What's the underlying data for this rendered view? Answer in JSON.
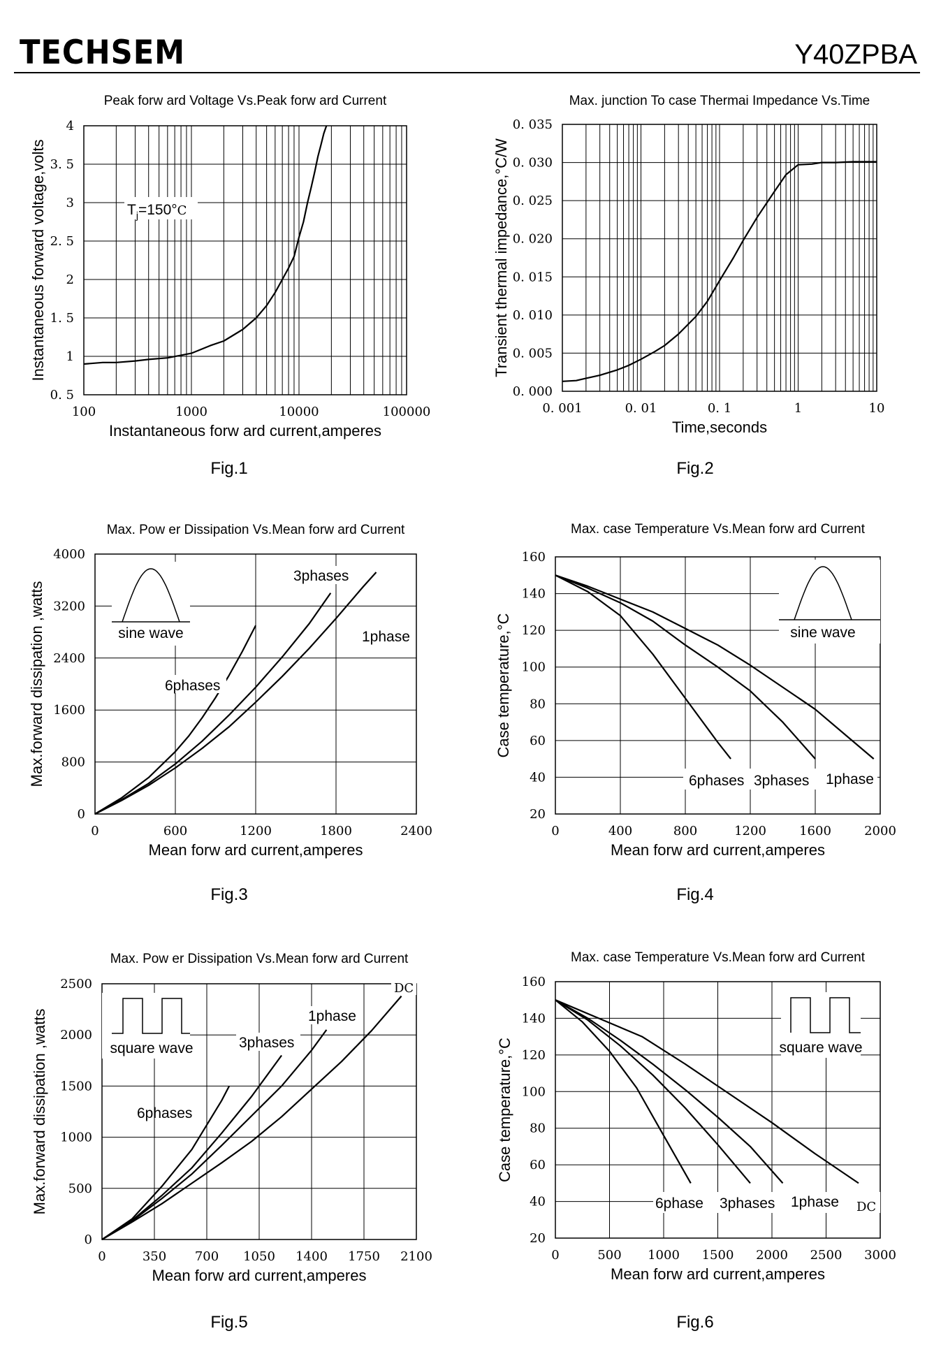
{
  "header": {
    "brand": "TECHSEM",
    "part_number": "Y40ZPBA"
  },
  "chart_data": [
    {
      "id": "fig1",
      "type": "line",
      "fig_label": "Fig.1",
      "title": "Peak forw ard Voltage Vs.Peak forw ard Current",
      "xlabel": "Instantaneous forw ard current,amperes",
      "ylabel": "Instantaneous forward voltage,volts",
      "xscale": "log",
      "xlim": [
        100,
        100000
      ],
      "ylim": [
        0.5,
        4
      ],
      "xticks": [
        "100",
        "1000",
        "10000",
        "100000"
      ],
      "yticks": [
        "0. 5",
        "1",
        "1. 5",
        "2",
        "2. 5",
        "3",
        "3. 5",
        "4"
      ],
      "annotation": {
        "main": "T",
        "sub": "j",
        "tail": "=150°",
        "unit": "C"
      },
      "series": [
        {
          "x": [
            100,
            150,
            200,
            300,
            400,
            600,
            1000,
            1500,
            2000,
            3000,
            4000,
            5000,
            6000,
            7000,
            8000,
            9000,
            10000,
            11000,
            12000,
            13000,
            14000,
            15000,
            16000,
            17000,
            18000
          ],
          "y": [
            0.9,
            0.92,
            0.92,
            0.94,
            0.96,
            0.98,
            1.04,
            1.14,
            1.2,
            1.35,
            1.5,
            1.66,
            1.83,
            2.0,
            2.15,
            2.3,
            2.55,
            2.75,
            3.0,
            3.2,
            3.4,
            3.6,
            3.75,
            3.9,
            4.0
          ]
        }
      ]
    },
    {
      "id": "fig2",
      "type": "line",
      "fig_label": "Fig.2",
      "title": "Max. junction To case Thermai Impedance Vs.Time",
      "xlabel": "Time,seconds",
      "ylabel": "Transient thermal impedance,°C/W",
      "xscale": "log",
      "xlim": [
        0.001,
        10
      ],
      "ylim": [
        0.0,
        0.035
      ],
      "xticks": [
        "0. 001",
        "0. 01",
        "0. 1",
        "1",
        "10"
      ],
      "yticks": [
        "0. 000",
        "0. 005",
        "0. 010",
        "0. 015",
        "0. 020",
        "0. 025",
        "0. 030",
        "0. 035"
      ],
      "series": [
        {
          "x": [
            0.001,
            0.0015,
            0.002,
            0.003,
            0.005,
            0.007,
            0.01,
            0.015,
            0.02,
            0.03,
            0.05,
            0.07,
            0.1,
            0.15,
            0.2,
            0.3,
            0.5,
            0.7,
            1,
            1.5,
            2,
            3,
            5,
            7,
            10
          ],
          "y": [
            0.0013,
            0.0014,
            0.0017,
            0.0021,
            0.0028,
            0.0034,
            0.0042,
            0.0052,
            0.006,
            0.0075,
            0.0098,
            0.0118,
            0.0145,
            0.0175,
            0.0198,
            0.0228,
            0.0262,
            0.0284,
            0.0297,
            0.0298,
            0.03,
            0.03,
            0.0301,
            0.0301,
            0.0301
          ]
        }
      ]
    },
    {
      "id": "fig3",
      "type": "line",
      "fig_label": "Fig.3",
      "title": "Max. Pow er Dissipation Vs.Mean forw ard Current",
      "xlabel": "Mean forw ard current,amperes",
      "ylabel": "Max.forward dissipation ,watts",
      "xlim": [
        0,
        2400
      ],
      "ylim": [
        0,
        4000
      ],
      "xticks": [
        "0",
        "600",
        "1200",
        "1800",
        "2400"
      ],
      "yticks": [
        "0",
        "800",
        "1600",
        "2400",
        "3200",
        "4000"
      ],
      "inset_label": "sine wave",
      "series": [
        {
          "name": "6phases",
          "x": [
            0,
            200,
            400,
            600,
            700,
            800,
            900,
            1000,
            1100,
            1200
          ],
          "y": [
            0,
            250,
            560,
            960,
            1200,
            1480,
            1790,
            2130,
            2500,
            2900
          ]
        },
        {
          "name": "3phases",
          "x": [
            0,
            200,
            400,
            600,
            800,
            1000,
            1200,
            1400,
            1600,
            1760
          ],
          "y": [
            0,
            220,
            470,
            770,
            1120,
            1520,
            1950,
            2420,
            2930,
            3400
          ]
        },
        {
          "name": "1phase",
          "x": [
            0,
            200,
            400,
            600,
            800,
            1000,
            1200,
            1400,
            1600,
            1800,
            2000,
            2100
          ],
          "y": [
            0,
            210,
            440,
            710,
            1010,
            1340,
            1720,
            2120,
            2550,
            3010,
            3490,
            3720
          ]
        }
      ],
      "series_labels": [
        "6phases",
        "3phases",
        "1phase"
      ]
    },
    {
      "id": "fig4",
      "type": "line",
      "fig_label": "Fig.4",
      "title": "Max. case  Temperature Vs.Mean forw ard Current",
      "xlabel": "Mean forw ard current,amperes",
      "ylabel": "Case  temperature,°C",
      "xlim": [
        0,
        2000
      ],
      "ylim": [
        20,
        160
      ],
      "xticks": [
        "0",
        "400",
        "800",
        "1200",
        "1600",
        "2000"
      ],
      "yticks": [
        "20",
        "40",
        "60",
        "80",
        "100",
        "120",
        "140",
        "160"
      ],
      "inset_label": "sine wave",
      "series": [
        {
          "name": "6phases",
          "x": [
            0,
            200,
            400,
            600,
            800,
            1000,
            1080
          ],
          "y": [
            150,
            141,
            128,
            107,
            83,
            59,
            50
          ]
        },
        {
          "name": "3phases",
          "x": [
            0,
            200,
            400,
            600,
            800,
            1000,
            1200,
            1400,
            1600
          ],
          "y": [
            150,
            143,
            135,
            125,
            112,
            100,
            87,
            70,
            50
          ]
        },
        {
          "name": "1phase",
          "x": [
            0,
            200,
            400,
            600,
            800,
            1000,
            1200,
            1400,
            1600,
            1800,
            1960
          ],
          "y": [
            150,
            144,
            137,
            130,
            121,
            112,
            101,
            89,
            77,
            62,
            50
          ]
        }
      ],
      "series_labels": [
        "6phases",
        "3phases",
        "1phase"
      ]
    },
    {
      "id": "fig5",
      "type": "line",
      "fig_label": "Fig.5",
      "title": "Max. Pow er Dissipation Vs.Mean forw ard Current",
      "xlabel": "Mean forw ard current,amperes",
      "ylabel": "Max.forward dissipation ,watts",
      "xlim": [
        0,
        2100
      ],
      "ylim": [
        0,
        2500
      ],
      "xticks": [
        "0",
        "350",
        "700",
        "1050",
        "1400",
        "1750",
        "2100"
      ],
      "yticks": [
        "0",
        "500",
        "1000",
        "1500",
        "2000",
        "2500"
      ],
      "inset_label": "square wave",
      "series": [
        {
          "name": "6phases",
          "x": [
            0,
            200,
            400,
            600,
            800,
            850
          ],
          "y": [
            0,
            200,
            520,
            880,
            1360,
            1500
          ]
        },
        {
          "name": "3phases",
          "x": [
            0,
            200,
            400,
            600,
            800,
            1000,
            1200
          ],
          "y": [
            0,
            185,
            430,
            700,
            1040,
            1400,
            1800
          ]
        },
        {
          "name": "1phase",
          "x": [
            0,
            200,
            400,
            600,
            800,
            1000,
            1200,
            1400,
            1500
          ],
          "y": [
            0,
            180,
            400,
            640,
            920,
            1210,
            1500,
            1850,
            2050
          ]
        },
        {
          "name": "DC",
          "x": [
            0,
            200,
            400,
            600,
            800,
            1000,
            1200,
            1400,
            1600,
            1800,
            2000
          ],
          "y": [
            0,
            170,
            350,
            550,
            750,
            960,
            1200,
            1470,
            1740,
            2040,
            2380
          ]
        }
      ],
      "series_labels": [
        "6phases",
        "3phases",
        "1phase",
        "DC"
      ]
    },
    {
      "id": "fig6",
      "type": "line",
      "fig_label": "Fig.6",
      "title": "Max. case Temperature Vs.Mean forw ard Current",
      "xlabel": "Mean forw ard current,amperes",
      "ylabel": "Case  temperature,°C",
      "xlim": [
        0,
        3000
      ],
      "ylim": [
        20,
        160
      ],
      "xticks": [
        "0",
        "500",
        "1000",
        "1500",
        "2000",
        "2500",
        "3000"
      ],
      "yticks": [
        "20",
        "40",
        "60",
        "80",
        "100",
        "120",
        "140",
        "160"
      ],
      "inset_label": "square wave",
      "series": [
        {
          "name": "6phase",
          "x": [
            0,
            250,
            500,
            750,
            1000,
            1250
          ],
          "y": [
            150,
            138,
            122,
            102,
            76,
            50
          ]
        },
        {
          "name": "3phases",
          "x": [
            0,
            300,
            600,
            900,
            1200,
            1500,
            1800
          ],
          "y": [
            150,
            139,
            125,
            109,
            91,
            71,
            50
          ]
        },
        {
          "name": "1phase",
          "x": [
            0,
            300,
            600,
            900,
            1200,
            1500,
            1800,
            2100
          ],
          "y": [
            150,
            140,
            128,
            115,
            101,
            86,
            70,
            50
          ]
        },
        {
          "name": "DC",
          "x": [
            0,
            400,
            800,
            1200,
            1600,
            2000,
            2400,
            2800
          ],
          "y": [
            150,
            140,
            130,
            115,
            99,
            83,
            66,
            50
          ]
        }
      ],
      "series_labels": [
        "6phase",
        "3phases",
        "1phase",
        "DC"
      ]
    }
  ]
}
